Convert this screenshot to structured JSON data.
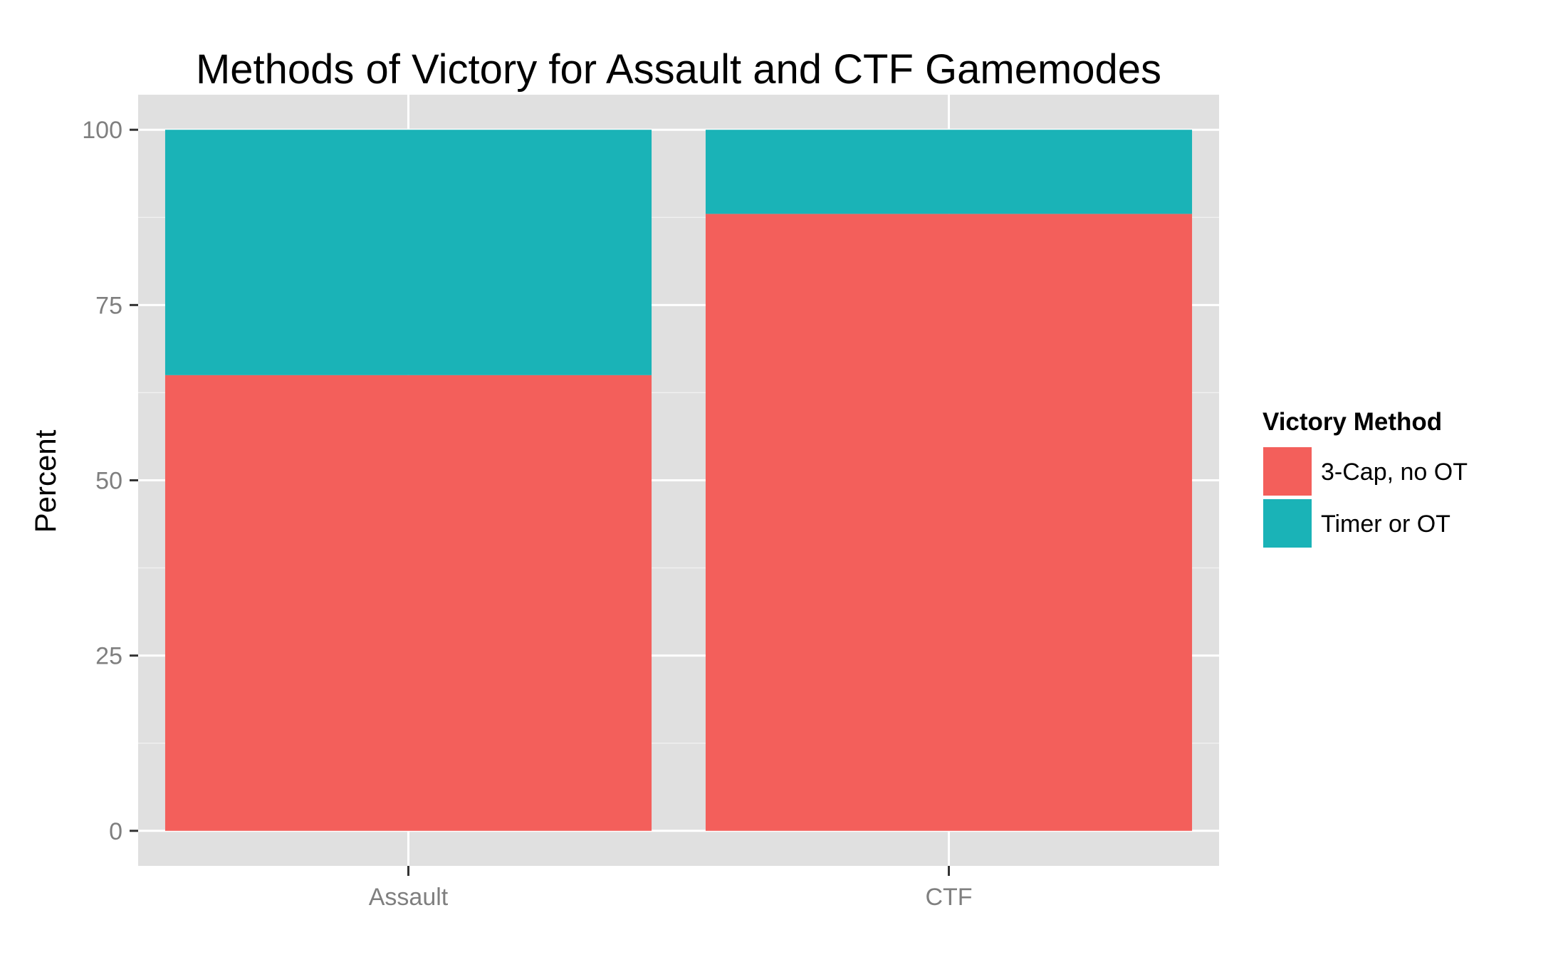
{
  "chart_data": {
    "type": "bar",
    "stacked": true,
    "title": "Methods of Victory for Assault and CTF Gamemodes",
    "xlabel": "",
    "ylabel": "Percent",
    "categories": [
      "Assault",
      "CTF"
    ],
    "series": [
      {
        "name": "3-Cap, no OT",
        "values": [
          65,
          88
        ],
        "color": "#F35F5B"
      },
      {
        "name": "Timer or OT",
        "values": [
          35,
          12
        ],
        "color": "#1AB3B7"
      }
    ],
    "ylim": [
      -5,
      105
    ],
    "yticks": [
      0,
      25,
      50,
      75,
      100
    ],
    "grid": true,
    "panel_background": "#E0E0E0",
    "grid_color": "#FFFFFF",
    "legend": {
      "title": "Victory Method",
      "position": "right"
    }
  }
}
